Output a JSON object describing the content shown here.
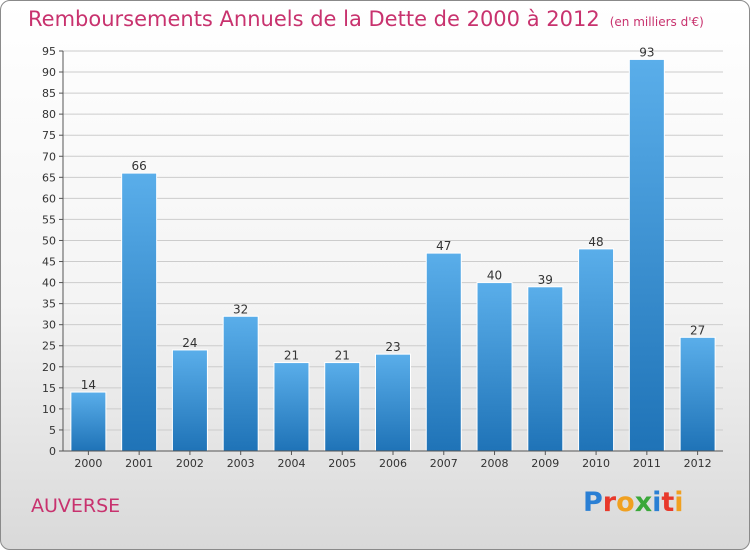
{
  "title": "Remboursements Annuels de la Dette de 2000 à 2012",
  "subtitle": "(en milliers d'€)",
  "commune": "AUVERSE",
  "logo": {
    "text": "Proxiti",
    "letters": [
      "P",
      "r",
      "o",
      "x",
      "i",
      "t",
      "i"
    ],
    "colors": [
      "#2a7fd4",
      "#e8392b",
      "#f0a020",
      "#3aa83a",
      "#2a7fd4",
      "#e8392b",
      "#f0a020"
    ]
  },
  "colors": {
    "accent": "#c8326e",
    "bar_top": "#5aaeea",
    "bar_bottom": "#1f73b7",
    "grid": "#cccccc"
  },
  "chart_data": {
    "type": "bar",
    "categories": [
      "2000",
      "2001",
      "2002",
      "2003",
      "2004",
      "2005",
      "2006",
      "2007",
      "2008",
      "2009",
      "2010",
      "2011",
      "2012"
    ],
    "values": [
      14,
      66,
      24,
      32,
      21,
      21,
      23,
      47,
      40,
      39,
      48,
      93,
      27
    ],
    "title": "Remboursements Annuels de la Dette de 2000 à 2012",
    "xlabel": "",
    "ylabel": "",
    "ylim": [
      0,
      95
    ],
    "yticks": [
      0,
      5,
      10,
      15,
      20,
      25,
      30,
      35,
      40,
      45,
      50,
      55,
      60,
      65,
      70,
      75,
      80,
      85,
      90,
      95
    ],
    "grid": true,
    "data_labels": true
  }
}
